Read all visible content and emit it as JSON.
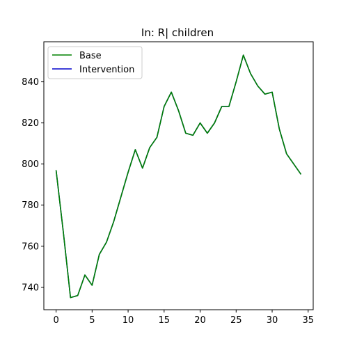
{
  "chart_data": {
    "type": "line",
    "title": "In: R| children",
    "xlabel": "",
    "ylabel": "",
    "xlim": [
      -1.7,
      35.7
    ],
    "ylim": [
      729.1,
      859.5
    ],
    "xticks": [
      0,
      5,
      10,
      15,
      20,
      25,
      30,
      35
    ],
    "yticks": [
      740,
      760,
      780,
      800,
      820,
      840
    ],
    "x": [
      0,
      1,
      2,
      3,
      4,
      5,
      6,
      7,
      8,
      9,
      10,
      11,
      12,
      13,
      14,
      15,
      16,
      17,
      18,
      19,
      20,
      21,
      22,
      23,
      24,
      25,
      26,
      27,
      28,
      29,
      30,
      31,
      32,
      33,
      34
    ],
    "series": [
      {
        "name": "Base",
        "color": "#008000",
        "values": [
          797,
          767,
          735,
          736,
          746,
          741,
          756,
          762,
          772,
          784,
          796,
          807,
          798,
          808,
          813,
          828,
          835,
          826,
          815,
          814,
          820,
          815,
          820,
          828,
          828,
          840,
          853,
          844,
          838,
          834,
          835,
          817,
          805,
          800,
          795
        ]
      },
      {
        "name": "Intervention",
        "color": "#0000cc",
        "values": [
          797,
          767,
          735,
          736,
          746,
          741,
          756,
          762,
          772,
          784,
          796,
          807,
          798,
          808,
          813,
          828,
          835,
          826,
          815,
          814,
          820,
          815,
          820,
          828,
          828,
          840,
          853,
          844,
          838,
          834,
          835,
          817,
          805,
          800,
          795
        ]
      }
    ],
    "legend_position": "top-left",
    "grid": false
  }
}
